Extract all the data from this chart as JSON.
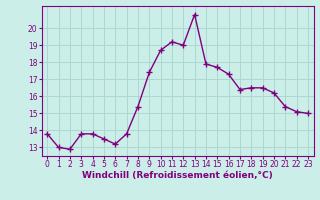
{
  "x": [
    0,
    1,
    2,
    3,
    4,
    5,
    6,
    7,
    8,
    9,
    10,
    11,
    12,
    13,
    14,
    15,
    16,
    17,
    18,
    19,
    20,
    21,
    22,
    23
  ],
  "y": [
    13.8,
    13.0,
    12.9,
    13.8,
    13.8,
    13.5,
    13.2,
    13.8,
    15.4,
    17.4,
    18.7,
    19.2,
    19.0,
    20.8,
    17.9,
    17.7,
    17.3,
    16.4,
    16.5,
    16.5,
    16.2,
    15.4,
    15.1,
    15.0
  ],
  "line_color": "#800080",
  "marker": "+",
  "marker_size": 4,
  "marker_linewidth": 1.0,
  "bg_color": "#cceee8",
  "grid_color": "#aad8d0",
  "xlabel": "Windchill (Refroidissement éolien,°C)",
  "xlabel_color": "#800080",
  "ylim": [
    12.5,
    21.3
  ],
  "xlim": [
    -0.5,
    23.5
  ],
  "yticks": [
    13,
    14,
    15,
    16,
    17,
    18,
    19,
    20
  ],
  "xticks": [
    0,
    1,
    2,
    3,
    4,
    5,
    6,
    7,
    8,
    9,
    10,
    11,
    12,
    13,
    14,
    15,
    16,
    17,
    18,
    19,
    20,
    21,
    22,
    23
  ],
  "tick_color": "#800080",
  "spine_color": "#800080",
  "tick_fontsize": 5.5,
  "xlabel_fontsize": 6.5,
  "linewidth": 1.0
}
